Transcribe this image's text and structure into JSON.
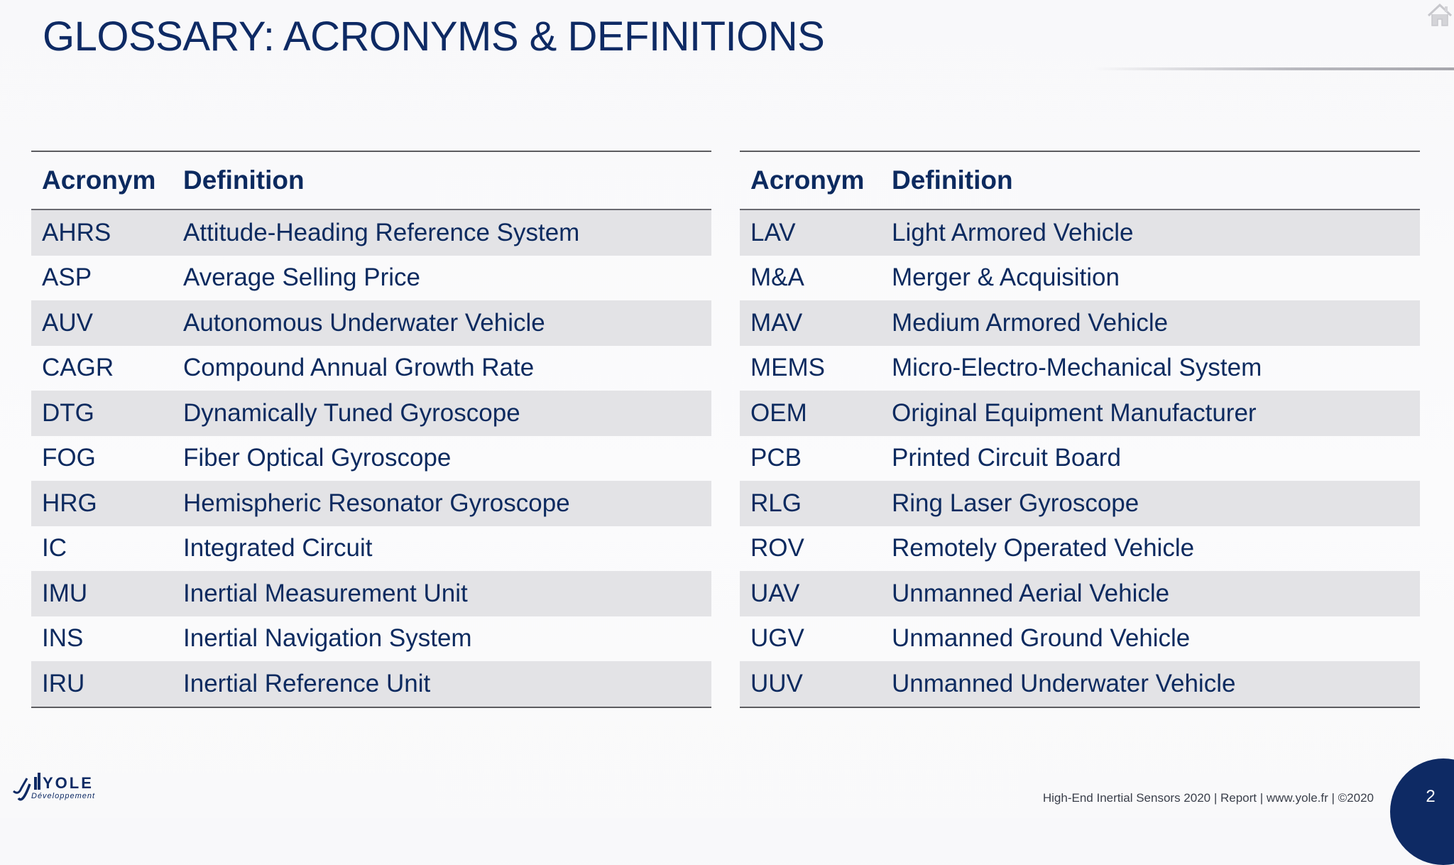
{
  "slide": {
    "title": "GLOSSARY: ACRONYMS & DEFINITIONS"
  },
  "icons": {
    "home": "home-icon",
    "logo": "yole-logo"
  },
  "colors": {
    "title": "#0e2a64",
    "text": "#0c2a5f",
    "row_shade": "#e3e3e6",
    "page_circle": "#0e2a64"
  },
  "left_table": {
    "headers": {
      "acronym": "Acronym",
      "definition": "Definition"
    },
    "rows": [
      {
        "acronym": "AHRS",
        "definition": "Attitude-Heading Reference System"
      },
      {
        "acronym": "ASP",
        "definition": "Average Selling Price"
      },
      {
        "acronym": "AUV",
        "definition": "Autonomous Underwater Vehicle"
      },
      {
        "acronym": "CAGR",
        "definition": "Compound Annual Growth Rate"
      },
      {
        "acronym": "DTG",
        "definition": "Dynamically Tuned Gyroscope"
      },
      {
        "acronym": "FOG",
        "definition": "Fiber Optical Gyroscope"
      },
      {
        "acronym": "HRG",
        "definition": "Hemispheric Resonator Gyroscope"
      },
      {
        "acronym": "IC",
        "definition": "Integrated Circuit"
      },
      {
        "acronym": "IMU",
        "definition": "Inertial Measurement Unit"
      },
      {
        "acronym": "INS",
        "definition": "Inertial Navigation System"
      },
      {
        "acronym": "IRU",
        "definition": "Inertial Reference Unit"
      }
    ]
  },
  "right_table": {
    "headers": {
      "acronym": "Acronym",
      "definition": "Definition"
    },
    "rows": [
      {
        "acronym": "LAV",
        "definition": "Light Armored Vehicle"
      },
      {
        "acronym": "M&A",
        "definition": "Merger & Acquisition"
      },
      {
        "acronym": "MAV",
        "definition": "Medium Armored Vehicle"
      },
      {
        "acronym": "MEMS",
        "definition": "Micro-Electro-Mechanical System"
      },
      {
        "acronym": "OEM",
        "definition": "Original Equipment Manufacturer"
      },
      {
        "acronym": "PCB",
        "definition": "Printed Circuit Board"
      },
      {
        "acronym": "RLG",
        "definition": "Ring Laser Gyroscope"
      },
      {
        "acronym": "ROV",
        "definition": "Remotely Operated Vehicle"
      },
      {
        "acronym": "UAV",
        "definition": "Unmanned Aerial Vehicle"
      },
      {
        "acronym": "UGV",
        "definition": "Unmanned Ground Vehicle"
      },
      {
        "acronym": "UUV",
        "definition": "Unmanned Underwater Vehicle"
      }
    ]
  },
  "logo": {
    "name": "YOLE",
    "subtitle": "Développement"
  },
  "footer": {
    "text": "High-End Inertial Sensors 2020 | Report | www.yole.fr | ©2020",
    "page_number": "2"
  }
}
